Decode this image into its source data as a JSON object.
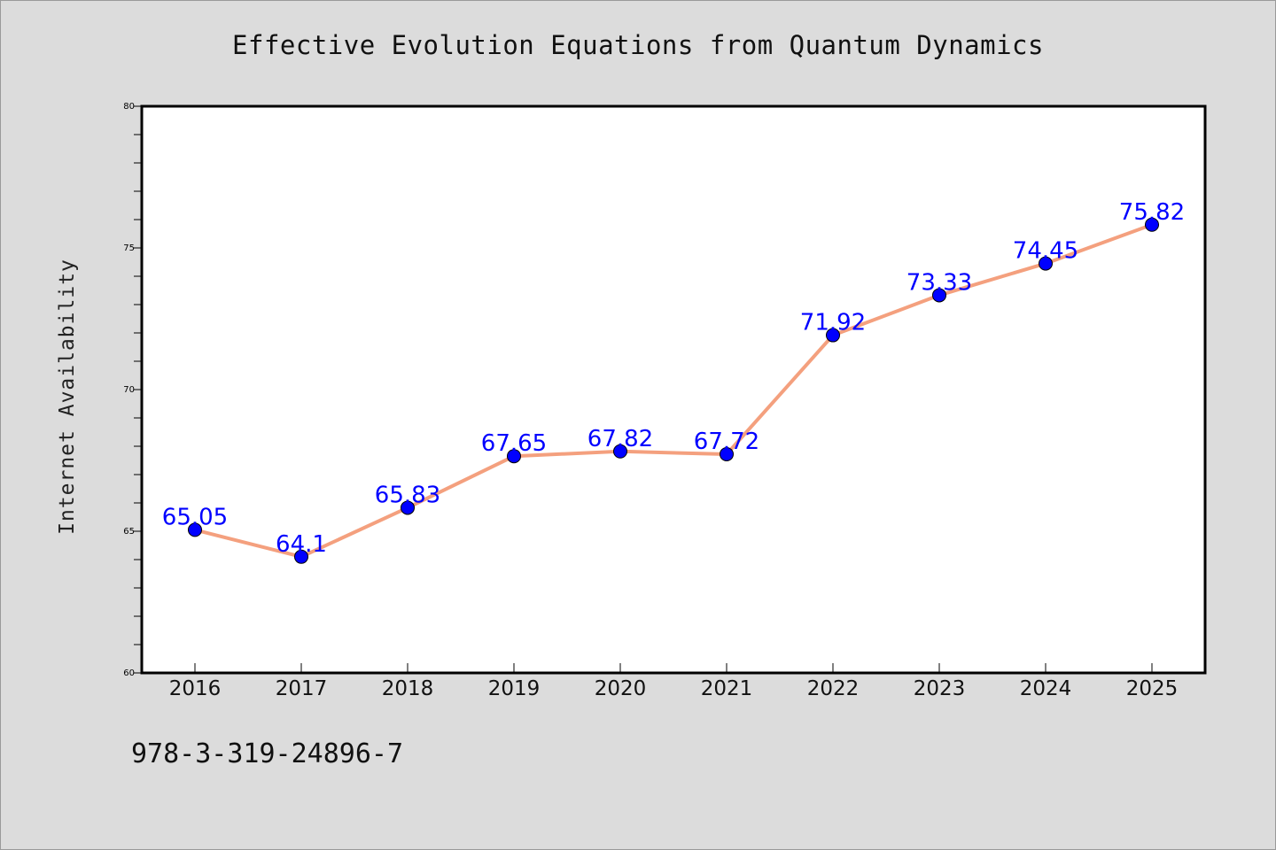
{
  "chart_data": {
    "type": "line",
    "title": "Effective Evolution Equations from Quantum Dynamics",
    "xlabel": "",
    "ylabel": "Internet Availability",
    "x": [
      "2016",
      "2017",
      "2018",
      "2019",
      "2020",
      "2021",
      "2022",
      "2023",
      "2024",
      "2025"
    ],
    "series": [
      {
        "values": [
          65.05,
          64.1,
          65.83,
          67.65,
          67.82,
          67.72,
          71.92,
          73.33,
          74.45,
          75.82
        ],
        "data_labels": [
          "65.05",
          "64.1",
          "65.83",
          "67.65",
          "67.82",
          "67.72",
          "71.92",
          "73.33",
          "74.45",
          "75.82"
        ]
      }
    ],
    "ylim": [
      60,
      80
    ],
    "yticks": [
      "60",
      "65",
      "70",
      "75",
      "80"
    ],
    "grid": false,
    "line_color": "#f4a07e",
    "marker_color": "#0000ff",
    "label_color": "#0000ff"
  },
  "footer_text": "978-3-319-24896-7"
}
